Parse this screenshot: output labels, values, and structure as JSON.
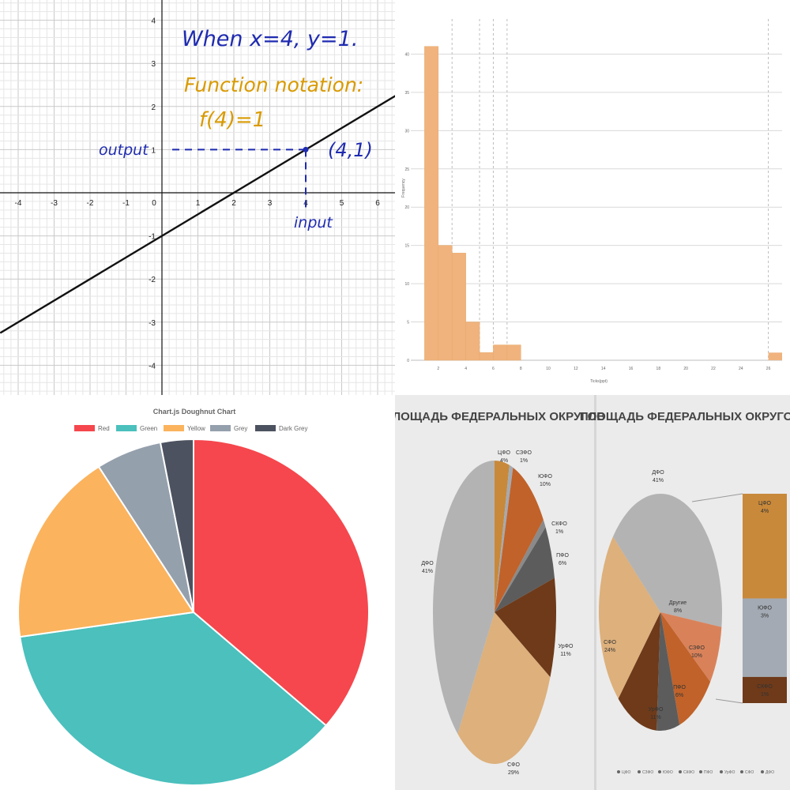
{
  "chart_data": [
    {
      "type": "line",
      "xlim": [
        -4.5,
        6.5
      ],
      "ylim": [
        -4.6,
        4.1
      ],
      "x_ticks": [
        "-4",
        "-3",
        "-2",
        "-1",
        "0",
        "1",
        "2",
        "3",
        "4",
        "5",
        "6"
      ],
      "y_ticks": [
        "4",
        "3",
        "2",
        "1",
        "-1",
        "-2",
        "-3",
        "-4"
      ],
      "grid": true,
      "series": [
        {
          "x": [
            -4.5,
            6.5
          ],
          "y": [
            -3.25,
            2.25
          ]
        }
      ],
      "point": {
        "x": 4,
        "y": 1
      },
      "annotations": {
        "line1": "When  x=4, y=1.",
        "line2": "Function notation:",
        "line3": "f(4)=1",
        "output": "output",
        "input": "input",
        "point": "(4,1)"
      }
    },
    {
      "type": "bar",
      "xlabel": "Ticks(ppt)",
      "ylabel": "Frequency",
      "ylim": [
        0,
        45
      ],
      "y_ticks": [
        "0",
        "5",
        "10",
        "15",
        "20",
        "25",
        "30",
        "35",
        "40"
      ],
      "x_ticks": [
        "2",
        "4",
        "6",
        "8",
        "10",
        "12",
        "14",
        "16",
        "18",
        "20",
        "22",
        "24",
        "26"
      ],
      "bins_start": 1,
      "bin_width": 1,
      "values": [
        41,
        15,
        14,
        5,
        1,
        2,
        2
      ],
      "outlier": {
        "x": 26.5,
        "value": 1
      },
      "vlines": [
        3,
        5,
        6,
        7,
        26
      ]
    },
    {
      "type": "pie",
      "title": "Chart.js Doughnut Chart",
      "legend_position": "top",
      "categories": [
        "Red",
        "Green",
        "Yellow",
        "Grey",
        "Dark Grey"
      ],
      "values": [
        300,
        300,
        150,
        50,
        25
      ],
      "colors": [
        "#f5474d",
        "#4bc0bd",
        "#fbb35d",
        "#95a0ad",
        "#4c5260"
      ]
    },
    {
      "type": "pie",
      "title": "ПЛОЩАДЬ ФЕДЕРАЛЬНЫХ ОКРУГОВ",
      "categories": [
        "ЦФО",
        "СЗФО",
        "ЮФО",
        "СКФО",
        "ПФО",
        "УрФО",
        "СФО",
        "ДФО"
      ],
      "values": [
        4,
        1,
        10,
        1,
        6,
        11,
        29,
        41
      ],
      "labels": [
        "ЦФО\n4%",
        "СЗФО\n1%",
        "ЮФО\n10%",
        "СКФО\n1%",
        "ПФО\n6%",
        "УрФО\n11%",
        "СФО\n29%",
        "ДФО\n41%"
      ],
      "colors": [
        "#c8893b",
        "#a3aab3",
        "#c0622a",
        "#8a8a8a",
        "#5c5c5c",
        "#6e3a1a",
        "#ddb07c",
        "#b3b3b3"
      ]
    },
    {
      "type": "pie",
      "title": "ПЛОЩАДЬ ФЕДЕРАЛЬНЫХ ОКРУГОВ",
      "categories": [
        "ДФО",
        "Другие",
        "СЗФО",
        "ПФО",
        "УрФО",
        "СФО"
      ],
      "values": [
        41,
        8,
        10,
        6,
        11,
        24
      ],
      "labels": [
        "ДФО\n41%",
        "Другие\n8%",
        "СЗФО\n10%",
        "ПФО\n6%",
        "УрФО\n11%",
        "СФО\n24%"
      ],
      "colors": [
        "#b3b3b3",
        "#d9825a",
        "#c0622a",
        "#5c5c5c",
        "#6e3a1a",
        "#ddb07c"
      ],
      "breakout": {
        "labels": [
          "ЦФО\n4%",
          "ЮФО\n3%",
          "СКФО\n1%"
        ],
        "values": [
          4,
          3,
          1
        ],
        "colors": [
          "#c8893b",
          "#a3aab3",
          "#6e3a1a"
        ]
      },
      "legend": [
        "ЦФО",
        "СЗФО",
        "ЮФО",
        "СКФО",
        "ПФО",
        "УрФО",
        "СФО",
        "ДФО"
      ]
    }
  ]
}
